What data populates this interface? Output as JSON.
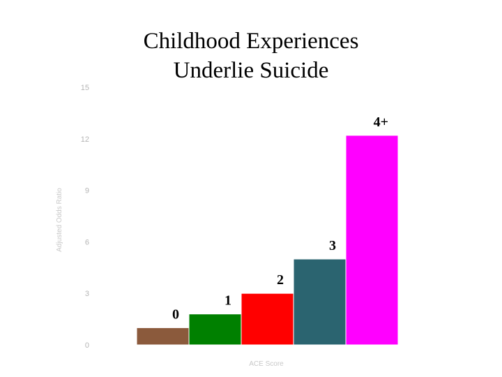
{
  "title_lines": [
    "Childhood Experiences",
    "Underlie Suicide"
  ],
  "chart_data": {
    "type": "bar",
    "title": "Childhood Experiences Underlie Suicide",
    "xlabel": "ACE Score",
    "ylabel": "Adjusted Odds Ratio",
    "categories": [
      "0",
      "1",
      "2",
      "3",
      "4+"
    ],
    "values": [
      1.0,
      1.8,
      3.0,
      5.0,
      12.2
    ],
    "colors": [
      "#8b5a3c",
      "#008000",
      "#ff0000",
      "#2b6470",
      "#ff00ff"
    ],
    "ylim": [
      0,
      15
    ],
    "yticks": [
      0,
      3,
      6,
      9,
      12,
      15
    ],
    "ytick_labels": [
      "0",
      "3",
      "6",
      "9",
      "12",
      "15"
    ],
    "grid": false,
    "legend": "none"
  }
}
